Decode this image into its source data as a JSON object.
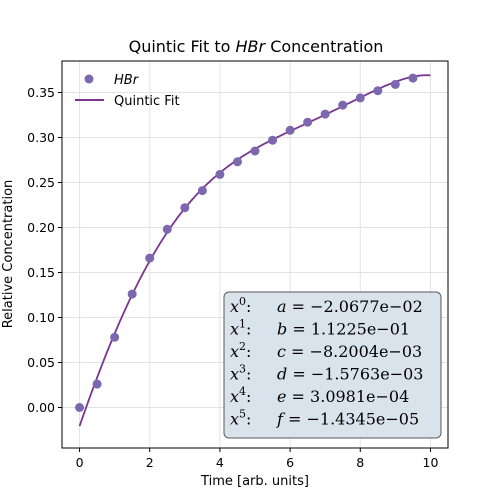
{
  "chart_data": {
    "type": "scatter",
    "title_prefix": "Quintic Fit to ",
    "title_species": "HBr",
    "title_suffix": " Concentration",
    "xlabel": "Time [arb. units]",
    "ylabel": "Relative Concentration",
    "xlim": [
      -0.5,
      10.5
    ],
    "ylim": [
      -0.045,
      0.385
    ],
    "xticks": [
      0,
      2,
      4,
      6,
      8,
      10
    ],
    "yticks": [
      0.0,
      0.05,
      0.1,
      0.15,
      0.2,
      0.25,
      0.3,
      0.35
    ],
    "grid": true,
    "legend_position": "top-left",
    "series": [
      {
        "name": "HBr",
        "kind": "scatter",
        "color": "#7b68ae",
        "x": [
          0,
          0.5,
          1,
          1.5,
          2,
          2.5,
          3,
          3.5,
          4,
          4.5,
          5,
          5.5,
          6,
          6.5,
          7,
          7.5,
          8,
          8.5,
          9,
          9.5
        ],
        "y": [
          0.0,
          0.026,
          0.078,
          0.126,
          0.166,
          0.198,
          0.222,
          0.241,
          0.259,
          0.273,
          0.285,
          0.297,
          0.308,
          0.317,
          0.326,
          0.336,
          0.344,
          0.352,
          0.359,
          0.366
        ]
      },
      {
        "name": "Quintic Fit",
        "kind": "line",
        "color": "#7a3591",
        "x_range": [
          0,
          10
        ],
        "coefficients": [
          -0.020677,
          0.11225,
          -0.0082004,
          -0.0015763,
          0.00030981,
          -1.4345e-05
        ]
      }
    ],
    "coefficient_box": {
      "rows": [
        {
          "power": "0",
          "letter": "a",
          "value": "−2.0677e−02"
        },
        {
          "power": "1",
          "letter": "b",
          "value": "1.1225e−01"
        },
        {
          "power": "2",
          "letter": "c",
          "value": "−8.2004e−03"
        },
        {
          "power": "3",
          "letter": "d",
          "value": "−1.5763e−03"
        },
        {
          "power": "4",
          "letter": "e",
          "value": "3.0981e−04"
        },
        {
          "power": "5",
          "letter": "f",
          "value": "−1.4345e−05"
        }
      ],
      "background": "#d9e3ec",
      "border": "#5a5a5a"
    }
  }
}
